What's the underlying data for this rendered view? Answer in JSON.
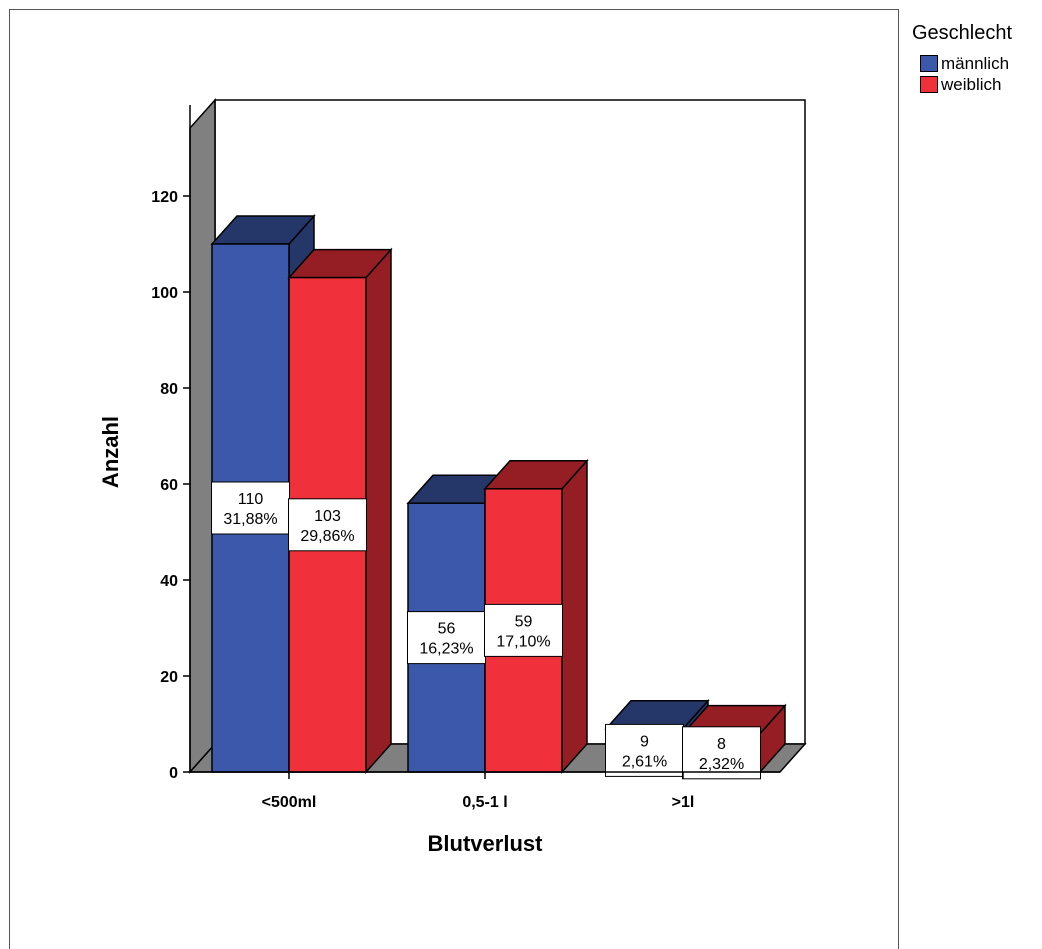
{
  "chart_data": {
    "type": "bar",
    "categories": [
      "<500ml",
      "0,5-1 l",
      ">1l"
    ],
    "series": [
      {
        "name": "männlich",
        "color": "#3C58AA",
        "values": [
          110,
          56,
          9
        ],
        "labels": [
          [
            "110",
            "31,88%"
          ],
          [
            "56",
            "16,23%"
          ],
          [
            "9",
            "2,61%"
          ]
        ]
      },
      {
        "name": "weiblich",
        "color": "#F0313C",
        "values": [
          103,
          59,
          8
        ],
        "labels": [
          [
            "103",
            "29,86%"
          ],
          [
            "59",
            "17,10%"
          ],
          [
            "8",
            "2,32%"
          ]
        ]
      }
    ],
    "xlabel": "Blutverlust",
    "ylabel": "Anzahl",
    "ylim": [
      0,
      140
    ],
    "yticks": [
      0,
      20,
      40,
      60,
      80,
      100,
      120
    ],
    "legend": {
      "title": "Geschlecht",
      "position": "top-right"
    },
    "style": "3d"
  }
}
